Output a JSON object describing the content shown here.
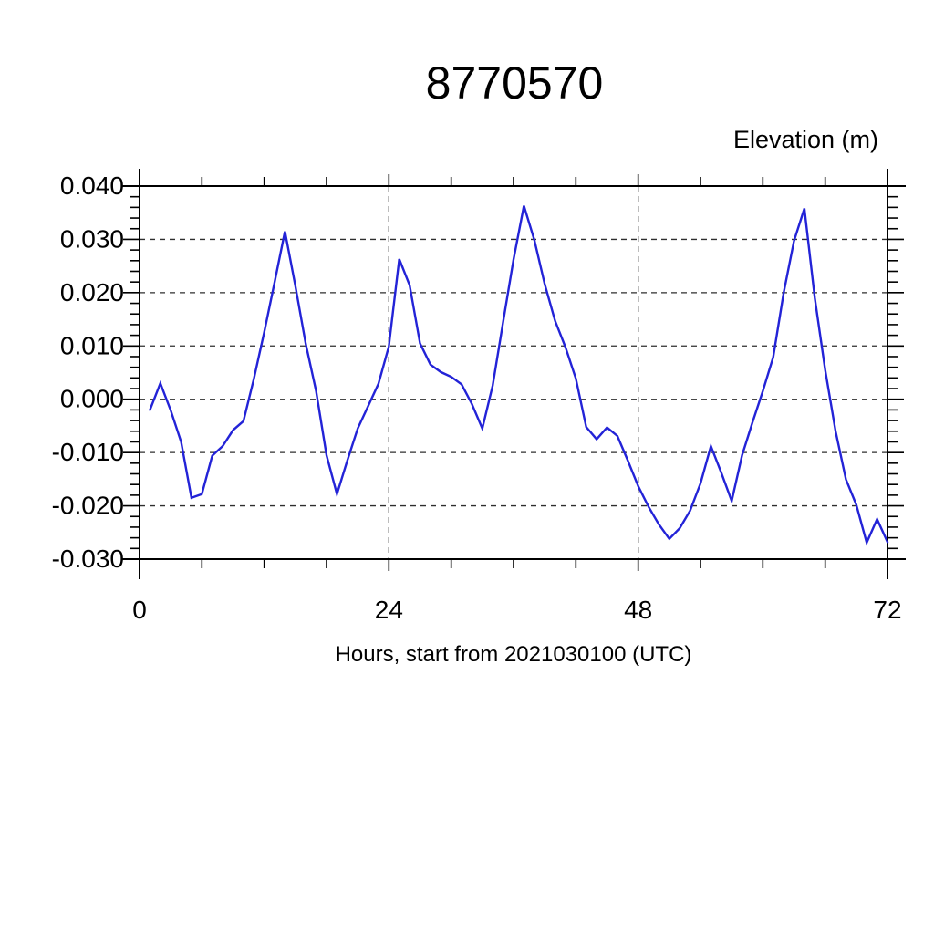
{
  "page": {
    "background": "#ffffff"
  },
  "chart_data": {
    "type": "line",
    "title": "8770570",
    "ylabel": "Elevation (m)",
    "xlabel": "Hours, start from 2021030100 (UTC)",
    "xlim": [
      0,
      72
    ],
    "ylim": [
      -0.03,
      0.04
    ],
    "x_ticks_major": [
      0,
      24,
      48,
      72
    ],
    "x_tick_labels": [
      "0",
      "24",
      "48",
      "72"
    ],
    "x_minor_tick_step": 6,
    "y_ticks_major": [
      0.04,
      0.03,
      0.02,
      0.01,
      0.0,
      -0.01,
      -0.02,
      -0.03
    ],
    "y_tick_labels": [
      "0.040",
      "0.030",
      "0.020",
      "0.010",
      "0.000",
      "-0.010",
      "-0.020",
      "-0.030"
    ],
    "y_minor_tick_step": 0.002,
    "grid": {
      "style": "dashed",
      "x_lines": [
        24,
        48
      ],
      "y_lines": [
        0.03,
        0.02,
        0.01,
        0.0,
        -0.01,
        -0.02
      ]
    },
    "legend": "none",
    "axis_color": "#000000",
    "grid_color": "#2e2e2e",
    "series": [
      {
        "name": "elevation",
        "color": "#2323d7",
        "x": [
          1,
          2,
          3,
          4,
          5,
          6,
          7,
          8,
          9,
          10,
          11,
          12,
          13,
          14,
          15,
          16,
          17,
          18,
          19,
          20,
          21,
          22,
          23,
          24,
          25,
          26,
          27,
          28,
          29,
          30,
          31,
          32,
          33,
          34,
          35,
          36,
          37,
          38,
          39,
          40,
          41,
          42,
          43,
          44,
          45,
          46,
          47,
          48,
          49,
          50,
          51,
          52,
          53,
          54,
          55,
          56,
          57,
          58,
          59,
          60,
          61,
          62,
          63,
          64,
          65,
          66,
          67,
          68,
          69,
          70,
          71,
          72
        ],
        "values": [
          -0.002,
          0.003,
          -0.0021,
          -0.008,
          -0.0185,
          -0.0178,
          -0.0106,
          -0.0088,
          -0.0058,
          -0.0041,
          0.0038,
          0.0126,
          0.022,
          0.0315,
          0.0213,
          0.0104,
          0.0015,
          -0.0105,
          -0.0178,
          -0.0115,
          -0.0055,
          -0.0013,
          0.0029,
          0.0099,
          0.0263,
          0.0214,
          0.0105,
          0.0065,
          0.0051,
          0.0042,
          0.0028,
          -0.0009,
          -0.0055,
          0.0026,
          0.0145,
          0.0262,
          0.0363,
          0.0299,
          0.0216,
          0.0147,
          0.0098,
          0.0039,
          -0.0052,
          -0.0075,
          -0.0053,
          -0.0069,
          -0.0115,
          -0.0163,
          -0.0202,
          -0.0235,
          -0.0262,
          -0.0242,
          -0.0209,
          -0.0158,
          -0.0088,
          -0.0138,
          -0.0191,
          -0.0105,
          -0.0044,
          0.0015,
          0.0079,
          0.0199,
          0.0297,
          0.0358,
          0.019,
          0.0055,
          -0.006,
          -0.015,
          -0.0198,
          -0.0269,
          -0.0225,
          -0.0268
        ]
      }
    ]
  }
}
